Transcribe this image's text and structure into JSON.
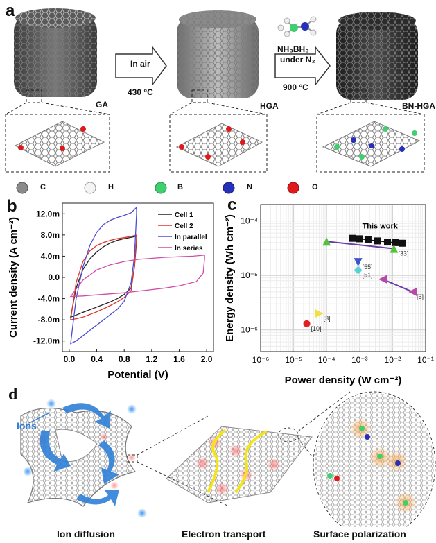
{
  "panel_a": {
    "letter": "a",
    "arrow1": {
      "line1": "In air",
      "line2": "430 °C"
    },
    "arrow2": {
      "line1": "NH₃BH₃",
      "line2": "under N₂",
      "line3": "900 °C"
    },
    "labels": [
      "GA",
      "HGA",
      "BN-HGA"
    ],
    "atom_legend": [
      {
        "symbol": "C",
        "color": "#8a8a8a"
      },
      {
        "symbol": "H",
        "color": "#ffffff"
      },
      {
        "symbol": "B",
        "color": "#3fcf6f"
      },
      {
        "symbol": "N",
        "color": "#2630b8"
      },
      {
        "symbol": "O",
        "color": "#e01a1a"
      }
    ]
  },
  "panel_b": {
    "letter": "b",
    "chart_data": {
      "type": "line",
      "xlabel": "Potential (V)",
      "ylabel": "Current density (A cm⁻²)",
      "xlim": [
        -0.1,
        2.1
      ],
      "ylim": [
        -14,
        14
      ],
      "xticks": [
        "0.0",
        "0.4",
        "0.8",
        "1.2",
        "1.6",
        "2.0"
      ],
      "yticks": [
        "12.0m",
        "8.0m",
        "4.0m",
        "0.0",
        "-4.0m",
        "-8.0m",
        "-12.0m"
      ],
      "legend_position": "top-right",
      "series": [
        {
          "name": "Cell 1",
          "color": "#222222",
          "upper": [
            [
              0.02,
              -7.5
            ],
            [
              0.1,
              -2
            ],
            [
              0.2,
              1.5
            ],
            [
              0.3,
              3.5
            ],
            [
              0.4,
              4.8
            ],
            [
              0.5,
              5.8
            ],
            [
              0.6,
              6.5
            ],
            [
              0.7,
              7
            ],
            [
              0.8,
              7.3
            ],
            [
              0.92,
              7.6
            ],
            [
              0.98,
              7.8
            ]
          ],
          "lower": [
            [
              0.98,
              6.8
            ],
            [
              0.95,
              2
            ],
            [
              0.9,
              -2
            ],
            [
              0.8,
              -3.2
            ],
            [
              0.7,
              -4
            ],
            [
              0.6,
              -4.6
            ],
            [
              0.5,
              -5.1
            ],
            [
              0.4,
              -5.6
            ],
            [
              0.3,
              -6.1
            ],
            [
              0.2,
              -6.6
            ],
            [
              0.1,
              -7.1
            ],
            [
              0.02,
              -7.5
            ]
          ]
        },
        {
          "name": "Cell 2",
          "color": "#e0342a",
          "upper": [
            [
              0.02,
              -8
            ],
            [
              0.1,
              -1
            ],
            [
              0.2,
              3
            ],
            [
              0.3,
              5
            ],
            [
              0.4,
              6
            ],
            [
              0.5,
              6.6
            ],
            [
              0.6,
              7
            ],
            [
              0.7,
              7.3
            ],
            [
              0.8,
              7.5
            ],
            [
              0.92,
              7.8
            ],
            [
              0.98,
              8
            ]
          ],
          "lower": [
            [
              0.98,
              7.5
            ],
            [
              0.95,
              2
            ],
            [
              0.9,
              -2.5
            ],
            [
              0.8,
              -3.8
            ],
            [
              0.7,
              -4.6
            ],
            [
              0.6,
              -5.3
            ],
            [
              0.5,
              -5.9
            ],
            [
              0.4,
              -6.5
            ],
            [
              0.3,
              -7
            ],
            [
              0.2,
              -7.5
            ],
            [
              0.1,
              -7.8
            ],
            [
              0.02,
              -8
            ]
          ]
        },
        {
          "name": "In parallel",
          "color": "#4b4bd8",
          "upper": [
            [
              0.02,
              -12.5
            ],
            [
              0.1,
              -4
            ],
            [
              0.2,
              2
            ],
            [
              0.3,
              6
            ],
            [
              0.4,
              8.5
            ],
            [
              0.5,
              10
            ],
            [
              0.6,
              10.8
            ],
            [
              0.7,
              11.3
            ],
            [
              0.8,
              11.7
            ],
            [
              0.9,
              12.2
            ],
            [
              0.98,
              13.2
            ]
          ],
          "lower": [
            [
              0.98,
              12
            ],
            [
              0.95,
              4
            ],
            [
              0.9,
              -1
            ],
            [
              0.8,
              -4.5
            ],
            [
              0.7,
              -6
            ],
            [
              0.6,
              -7
            ],
            [
              0.5,
              -8
            ],
            [
              0.4,
              -9
            ],
            [
              0.3,
              -10
            ],
            [
              0.2,
              -11
            ],
            [
              0.1,
              -12
            ],
            [
              0.02,
              -12.5
            ]
          ]
        },
        {
          "name": "In series",
          "color": "#d04aa8",
          "upper": [
            [
              0.02,
              -3.6
            ],
            [
              0.2,
              -0.5
            ],
            [
              0.4,
              1.4
            ],
            [
              0.6,
              2.4
            ],
            [
              0.8,
              3
            ],
            [
              1.0,
              3.4
            ],
            [
              1.2,
              3.6
            ],
            [
              1.4,
              3.8
            ],
            [
              1.6,
              3.9
            ],
            [
              1.8,
              4
            ],
            [
              1.97,
              4.2
            ]
          ],
          "lower": [
            [
              1.97,
              3.6
            ],
            [
              1.95,
              0.8
            ],
            [
              1.85,
              -0.8
            ],
            [
              1.6,
              -1.6
            ],
            [
              1.4,
              -2
            ],
            [
              1.2,
              -2.3
            ],
            [
              1.0,
              -2.6
            ],
            [
              0.8,
              -2.9
            ],
            [
              0.6,
              -3.1
            ],
            [
              0.4,
              -3.3
            ],
            [
              0.2,
              -3.5
            ],
            [
              0.02,
              -3.6
            ]
          ]
        }
      ]
    }
  },
  "panel_c": {
    "letter": "c",
    "chart_data": {
      "type": "scatter",
      "xlabel": "Power density (W cm⁻²)",
      "ylabel": "Energy density (Wh cm⁻²)",
      "x_scale": "log",
      "y_scale": "log",
      "xlim": [
        1e-06,
        0.1
      ],
      "ylim": [
        4e-07,
        0.0002
      ],
      "xticks": [
        "10⁻⁶",
        "10⁻⁵",
        "10⁻⁴",
        "10⁻³",
        "10⁻²",
        "10⁻¹"
      ],
      "yticks": [
        "10⁻⁴",
        "10⁻⁵",
        "10⁻⁶"
      ],
      "grid": true,
      "this_work_label": "This work",
      "this_work": {
        "color": "#111111",
        "marker": "square",
        "points": [
          [
            0.0006,
            4.8e-05
          ],
          [
            0.001,
            4.7e-05
          ],
          [
            0.0018,
            4.5e-05
          ],
          [
            0.0035,
            4.3e-05
          ],
          [
            0.007,
            4.1e-05
          ],
          [
            0.012,
            4e-05
          ],
          [
            0.02,
            3.9e-05
          ]
        ]
      },
      "references": [
        {
          "label": "[33]",
          "color": "#55c040",
          "marker": "triangle-up",
          "line_color": "#6a3aa8",
          "points": [
            [
              0.0001,
              4.2e-05
            ],
            [
              0.011,
              3.1e-05
            ]
          ]
        },
        {
          "label": "[55]",
          "color": "#3e55c8",
          "marker": "triangle-down",
          "points": [
            [
              0.0009,
              1.75e-05
            ]
          ]
        },
        {
          "label": "[51]",
          "color": "#57d0d8",
          "marker": "diamond",
          "points": [
            [
              0.0009,
              1.25e-05
            ]
          ]
        },
        {
          "label": "[6]",
          "color": "#b64aa8",
          "marker": "triangle-left",
          "line_color": "#6a3aa8",
          "points": [
            [
              0.005,
              8.5e-06
            ],
            [
              0.04,
              5e-06
            ]
          ]
        },
        {
          "label": "[3]",
          "color": "#f0e040",
          "marker": "triangle-right",
          "points": [
            [
              6e-05,
              2e-06
            ]
          ]
        },
        {
          "label": "[10]",
          "color": "#e02020",
          "marker": "circle",
          "points": [
            [
              2.5e-05,
              1.3e-06
            ]
          ]
        }
      ]
    }
  },
  "panel_d": {
    "letter": "d",
    "ions_label": "Ions",
    "captions": [
      "Ion diffusion",
      "Electron transport",
      "Surface polarization"
    ]
  }
}
